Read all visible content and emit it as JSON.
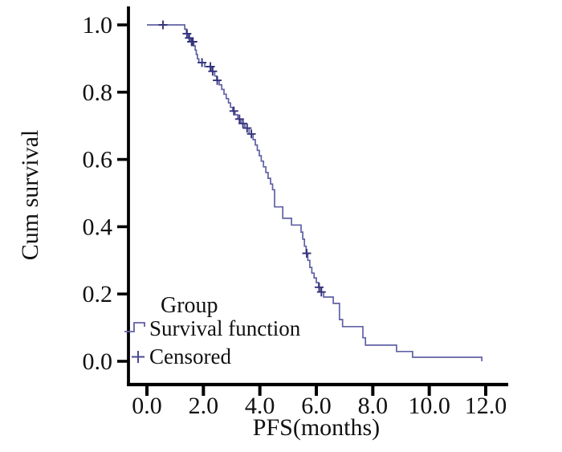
{
  "figure": {
    "background": "#ffffff",
    "axis_color": "#000000",
    "text_color": "#111111"
  },
  "chart_data": {
    "type": "line",
    "subtype": "kaplan-meier-step",
    "title": "",
    "xlabel": "PFS(months)",
    "ylabel": "Cum survival",
    "xlim": [
      0.0,
      12.0
    ],
    "ylim": [
      0.0,
      1.0
    ],
    "grid": false,
    "x_ticks": [
      0.0,
      2.0,
      4.0,
      6.0,
      8.0,
      10.0,
      12.0
    ],
    "x_tick_labels": [
      "0.0",
      "2.0",
      "4.0",
      "6.0",
      "8.0",
      "10.0",
      "12.0"
    ],
    "y_ticks": [
      0.0,
      0.2,
      0.4,
      0.6,
      0.8,
      1.0
    ],
    "y_tick_labels": [
      "0.0",
      "0.2",
      "0.4",
      "0.6",
      "0.8",
      "1.0"
    ],
    "legend": {
      "title": "Group",
      "position": "inside-bottom-left",
      "items": [
        {
          "label": "Survival function",
          "symbol": "step-line-icon",
          "color": "#6160a5"
        },
        {
          "label": "Censored",
          "symbol": "plus-icon",
          "color": "#4a4990"
        }
      ]
    },
    "series": [
      {
        "name": "Survival function",
        "color": "#6160a5",
        "step_points": [
          [
            0.0,
            1.0
          ],
          [
            1.34,
            0.987
          ],
          [
            1.4,
            0.974
          ],
          [
            1.47,
            0.961
          ],
          [
            1.56,
            0.95
          ],
          [
            1.66,
            0.938
          ],
          [
            1.71,
            0.925
          ],
          [
            1.75,
            0.912
          ],
          [
            1.79,
            0.899
          ],
          [
            1.84,
            0.888
          ],
          [
            2.05,
            0.876
          ],
          [
            2.3,
            0.862
          ],
          [
            2.4,
            0.848
          ],
          [
            2.47,
            0.835
          ],
          [
            2.56,
            0.822
          ],
          [
            2.65,
            0.808
          ],
          [
            2.73,
            0.794
          ],
          [
            2.81,
            0.781
          ],
          [
            2.89,
            0.768
          ],
          [
            2.96,
            0.755
          ],
          [
            3.04,
            0.744
          ],
          [
            3.12,
            0.733
          ],
          [
            3.22,
            0.72
          ],
          [
            3.33,
            0.707
          ],
          [
            3.47,
            0.693
          ],
          [
            3.62,
            0.676
          ],
          [
            3.76,
            0.659
          ],
          [
            3.84,
            0.643
          ],
          [
            3.91,
            0.627
          ],
          [
            3.98,
            0.611
          ],
          [
            4.05,
            0.595
          ],
          [
            4.13,
            0.578
          ],
          [
            4.21,
            0.561
          ],
          [
            4.29,
            0.544
          ],
          [
            4.38,
            0.527
          ],
          [
            4.45,
            0.51
          ],
          [
            4.52,
            0.459
          ],
          [
            4.81,
            0.425
          ],
          [
            5.12,
            0.405
          ],
          [
            5.46,
            0.384
          ],
          [
            5.52,
            0.363
          ],
          [
            5.58,
            0.342
          ],
          [
            5.64,
            0.321
          ],
          [
            5.7,
            0.3
          ],
          [
            5.77,
            0.279
          ],
          [
            5.84,
            0.262
          ],
          [
            5.92,
            0.248
          ],
          [
            6.0,
            0.234
          ],
          [
            6.08,
            0.22
          ],
          [
            6.16,
            0.206
          ],
          [
            6.26,
            0.191
          ],
          [
            6.6,
            0.172
          ],
          [
            6.82,
            0.124
          ],
          [
            6.93,
            0.103
          ],
          [
            7.65,
            0.07
          ],
          [
            7.74,
            0.048
          ],
          [
            8.84,
            0.029
          ],
          [
            9.41,
            0.012
          ],
          [
            11.86,
            0.0
          ]
        ]
      }
    ],
    "censored": {
      "name": "Censored",
      "color": "#34337b",
      "points": [
        [
          0.57,
          1.0
        ],
        [
          1.42,
          0.974
        ],
        [
          1.5,
          0.961
        ],
        [
          1.58,
          0.95
        ],
        [
          1.63,
          0.95
        ],
        [
          1.95,
          0.888
        ],
        [
          2.25,
          0.876
        ],
        [
          2.33,
          0.862
        ],
        [
          2.49,
          0.835
        ],
        [
          3.08,
          0.744
        ],
        [
          3.28,
          0.72
        ],
        [
          3.4,
          0.707
        ],
        [
          3.55,
          0.693
        ],
        [
          3.7,
          0.676
        ],
        [
          5.66,
          0.321
        ],
        [
          6.1,
          0.22
        ],
        [
          6.18,
          0.206
        ]
      ]
    }
  }
}
